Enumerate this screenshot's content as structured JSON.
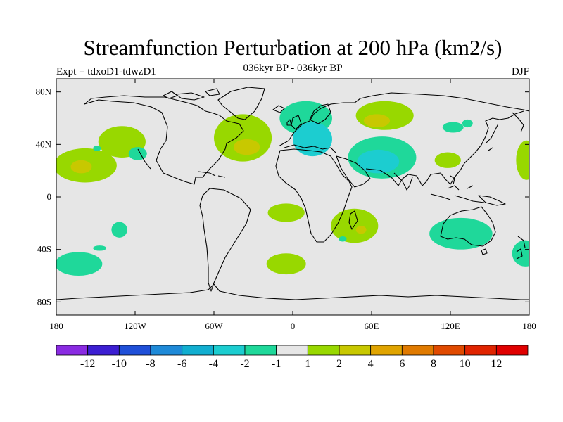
{
  "title": "Streamfunction Perturbation at 200 hPa (km2/s)",
  "subtitle": "036kyr BP - 036kyr BP",
  "experiment_label": "Expt = tdxoD1-tdwzD1",
  "season_label": "DJF",
  "map": {
    "projection": "cylindrical equidistant",
    "lon_range": [
      -180,
      180
    ],
    "lat_range": [
      -90,
      90
    ],
    "background_color": "#e6e6e6",
    "lat_ticks": [
      {
        "value": 80,
        "label": "80N"
      },
      {
        "value": 40,
        "label": "40N"
      },
      {
        "value": 0,
        "label": "0"
      },
      {
        "value": -40,
        "label": "40S"
      },
      {
        "value": -80,
        "label": "80S"
      }
    ],
    "lon_ticks": [
      {
        "value": -180,
        "label": "180"
      },
      {
        "value": -120,
        "label": "120W"
      },
      {
        "value": -60,
        "label": "60W"
      },
      {
        "value": 0,
        "label": "0"
      },
      {
        "value": 60,
        "label": "60E"
      },
      {
        "value": 120,
        "label": "120E"
      },
      {
        "value": 180,
        "label": "180"
      }
    ]
  },
  "colorbar": {
    "colors": [
      "#8a2be2",
      "#3c1ed2",
      "#1f4fd8",
      "#1e8ad8",
      "#11aed0",
      "#1ccdd0",
      "#1fd89a",
      "#e6e6e6",
      "#98d800",
      "#c8c800",
      "#e0a400",
      "#e07a00",
      "#e04a00",
      "#e02400",
      "#e00000"
    ],
    "labels": [
      "-12",
      "-10",
      "-8",
      "-6",
      "-4",
      "-2",
      "-1",
      "1",
      "2",
      "4",
      "6",
      "8",
      "10",
      "12"
    ]
  },
  "anomaly_regions": [
    {
      "name": "n-pacific-east-positive",
      "lon": -130,
      "lat": 42,
      "rlon": 18,
      "rlat": 12,
      "level": 2
    },
    {
      "name": "w-pacific-positive",
      "lon": -158,
      "lat": 24,
      "rlon": 24,
      "rlat": 13,
      "level": 2
    },
    {
      "name": "w-pacific-positive-core",
      "lon": -161,
      "lat": 23,
      "rlon": 8,
      "rlat": 5,
      "level": 4
    },
    {
      "name": "n-atlantic-positive",
      "lon": -38,
      "lat": 45,
      "rlon": 22,
      "rlat": 18,
      "level": 2
    },
    {
      "name": "n-atlantic-positive-core",
      "lon": -35,
      "lat": 38,
      "rlon": 10,
      "rlat": 6,
      "level": 4
    },
    {
      "name": "arctic-europe-negative",
      "lon": 10,
      "lat": 60,
      "rlon": 20,
      "rlat": 13,
      "level": -1
    },
    {
      "name": "europe-negative",
      "lon": 15,
      "lat": 44,
      "rlon": 15,
      "rlat": 13,
      "level": -2
    },
    {
      "name": "siberia-positive",
      "lon": 70,
      "lat": 62,
      "rlon": 22,
      "rlat": 11,
      "level": 2
    },
    {
      "name": "siberia-positive-core",
      "lon": 64,
      "lat": 58,
      "rlon": 10,
      "rlat": 5,
      "level": 4
    },
    {
      "name": "asia-negative",
      "lon": 68,
      "lat": 30,
      "rlon": 26,
      "rlat": 16,
      "level": -1
    },
    {
      "name": "asia-negative-core",
      "lon": 65,
      "lat": 27,
      "rlon": 16,
      "rlat": 9,
      "level": -2
    },
    {
      "name": "china-positive",
      "lon": 118,
      "lat": 28,
      "rlon": 10,
      "rlat": 6,
      "level": 2
    },
    {
      "name": "n-pacific-west-negative",
      "lon": 122,
      "lat": 53,
      "rlon": 8,
      "rlat": 4,
      "level": -1
    },
    {
      "name": "mid-pacific-negative",
      "lon": -118,
      "lat": 33,
      "rlon": 7,
      "rlat": 5,
      "level": -1
    },
    {
      "name": "e-pacific-dateline-positive",
      "lon": 178,
      "lat": 28,
      "rlon": 8,
      "rlat": 15,
      "level": 2
    },
    {
      "name": "s-atlantic-positive",
      "lon": -5,
      "lat": -12,
      "rlon": 14,
      "rlat": 7,
      "level": 2
    },
    {
      "name": "indian-ocean-positive",
      "lon": 47,
      "lat": -22,
      "rlon": 18,
      "rlat": 13,
      "level": 2
    },
    {
      "name": "indian-ocean-positive-core",
      "lon": 52,
      "lat": -25,
      "rlon": 4,
      "rlat": 3,
      "level": 4
    },
    {
      "name": "australia-negative",
      "lon": 128,
      "lat": -28,
      "rlon": 24,
      "rlat": 12,
      "level": -1
    },
    {
      "name": "s-atlantic-south-positive",
      "lon": -5,
      "lat": -51,
      "rlon": 15,
      "rlat": 8,
      "level": 2
    },
    {
      "name": "s-pacific-west-negative",
      "lon": -163,
      "lat": -51,
      "rlon": 18,
      "rlat": 9,
      "level": -1
    },
    {
      "name": "s-pacific-small-negative",
      "lon": -132,
      "lat": -25,
      "rlon": 6,
      "rlat": 6,
      "level": -1
    },
    {
      "name": "s-pacific-small2-negative",
      "lon": -147,
      "lat": -39,
      "rlon": 5,
      "rlat": 2,
      "level": -1
    },
    {
      "name": "s-atlantic-small-negative",
      "lon": 38,
      "lat": -32,
      "rlon": 3,
      "rlat": 2,
      "level": -1
    },
    {
      "name": "nz-negative",
      "lon": 177,
      "lat": -43,
      "rlon": 10,
      "rlat": 10,
      "level": -1
    },
    {
      "name": "greenland-east-negative",
      "lon": 133,
      "lat": 56,
      "rlon": 4,
      "rlat": 3,
      "level": -1
    },
    {
      "name": "pacific-east-small-negative",
      "lon": -149,
      "lat": 37,
      "rlon": 3,
      "rlat": 2,
      "level": -1
    }
  ]
}
